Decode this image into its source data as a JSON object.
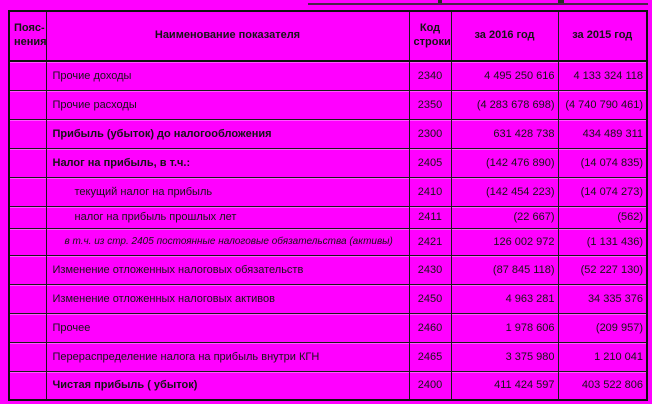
{
  "colors": {
    "background": "#ff00ff",
    "text": "#151515",
    "border": "#111111"
  },
  "table": {
    "columns": [
      {
        "key": "explanations",
        "label": "Пояс-нения",
        "label_line1": "Пояс-",
        "label_line2": "нения"
      },
      {
        "key": "name",
        "label": "Наименование показателя"
      },
      {
        "key": "code",
        "label": "Код строки"
      },
      {
        "key": "y2016",
        "label": "за 2016 год"
      },
      {
        "key": "y2015",
        "label": "за 2015 год"
      }
    ],
    "rows": [
      {
        "name": "Прочие доходы",
        "code": "2340",
        "y2016": "4 495 250 616",
        "y2015": "4 133 324 118",
        "bold": false,
        "indent": false,
        "italic": false
      },
      {
        "name": "Прочие расходы",
        "code": "2350",
        "y2016": "(4 283 678 698)",
        "y2015": "(4 740 790 461)",
        "bold": false,
        "indent": false,
        "italic": false
      },
      {
        "name": "Прибыль (убыток) до налогообложения",
        "code": "2300",
        "y2016": "631 428 738",
        "y2015": "434 489 311",
        "bold": true,
        "indent": false,
        "italic": false
      },
      {
        "name": "Налог на прибыль, в т.ч.:",
        "code": "2405",
        "y2016": "(142 476 890)",
        "y2015": "(14 074 835)",
        "bold": true,
        "indent": false,
        "italic": false
      },
      {
        "name": "текущий налог на прибыль",
        "code": "2410",
        "y2016": "(142 454 223)",
        "y2015": "(14 074 273)",
        "bold": false,
        "indent": true,
        "italic": false
      },
      {
        "name": "налог на прибыль прошлых лет",
        "code": "2411",
        "y2016": "(22 667)",
        "y2015": "(562)",
        "bold": false,
        "indent": true,
        "italic": false
      },
      {
        "name": "в т.ч. из стр. 2405 постоянные налоговые обязательства (активы)",
        "code": "2421",
        "y2016": "126 002 972",
        "y2015": "(1 131 436)",
        "bold": false,
        "indent": false,
        "italic": true
      },
      {
        "name": "Изменение отложенных налоговых обязательств",
        "code": "2430",
        "y2016": "(87 845 118)",
        "y2015": "(52 227 130)",
        "bold": false,
        "indent": false,
        "italic": false
      },
      {
        "name": "Изменение отложенных налоговых активов",
        "code": "2450",
        "y2016": "4 963 281",
        "y2015": "34 335 376",
        "bold": false,
        "indent": false,
        "italic": false
      },
      {
        "name": "Прочее",
        "code": "2460",
        "y2016": "1 978 606",
        "y2015": "(209 957)",
        "bold": false,
        "indent": false,
        "italic": false
      },
      {
        "name": "Перераспределение налога на прибыль внутри КГН",
        "code": "2465",
        "y2016": "3 375 980",
        "y2015": "1 210 041",
        "bold": false,
        "indent": false,
        "italic": false
      },
      {
        "name": "Чистая прибыль ( убыток)",
        "code": "2400",
        "y2016": "411 424 597",
        "y2015": "403 522 806",
        "bold": true,
        "indent": false,
        "italic": false
      }
    ]
  }
}
